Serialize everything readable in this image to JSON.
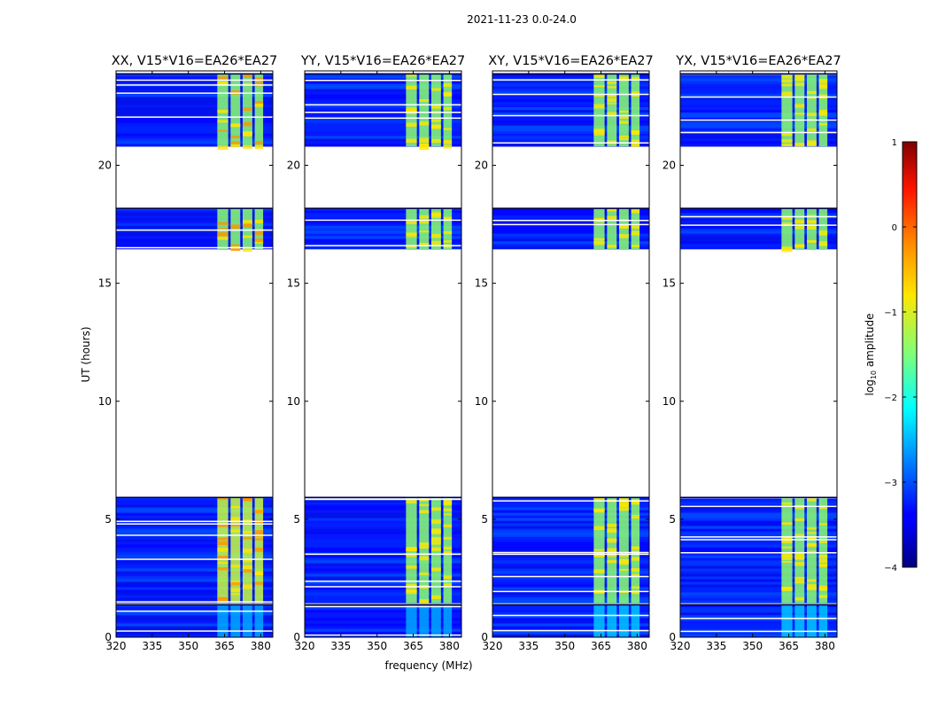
{
  "figure": {
    "suptitle": "2021-11-23 0.0-24.0",
    "xlabel": "frequency (MHz)",
    "ylabel": "UT (hours)"
  },
  "chart_data": {
    "type": "heatmap",
    "panels": [
      {
        "title": "XX, V15*V16=EA26*EA27",
        "pol": "XX"
      },
      {
        "title": "YY, V15*V16=EA26*EA27",
        "pol": "YY"
      },
      {
        "title": "XY, V15*V16=EA26*EA27",
        "pol": "XY"
      },
      {
        "title": "YX, V15*V16=EA26*EA27",
        "pol": "YX"
      }
    ],
    "x_range_mhz": [
      320,
      385
    ],
    "x_ticks": [
      320,
      335,
      350,
      365,
      380
    ],
    "y_range_hours": [
      0,
      24
    ],
    "y_ticks": [
      0,
      5,
      10,
      15,
      20
    ],
    "data_time_blocks_hours": [
      [
        0.0,
        1.4
      ],
      [
        1.45,
        5.95
      ],
      [
        16.45,
        18.2
      ],
      [
        20.8,
        23.9
      ]
    ],
    "empty_time_blocks_hours": [
      [
        5.95,
        16.45
      ],
      [
        18.2,
        20.8
      ]
    ],
    "bright_band_mhz": [
      362,
      381
    ],
    "bright_subbands_mhz": [
      [
        362,
        366.5
      ],
      [
        367.5,
        371.5
      ],
      [
        372.5,
        376.5
      ],
      [
        377.5,
        381
      ]
    ],
    "colorbar": {
      "label": "log10 amplitude",
      "label_main": "log",
      "label_sub": "10",
      "label_tail": " amplitude",
      "range": [
        -4,
        1
      ],
      "ticks": [
        -4,
        -3,
        -2,
        -1,
        0,
        1
      ],
      "tick_labels": [
        "−4",
        "−3",
        "−2",
        "−1",
        "0",
        "1"
      ],
      "colormap": "jet"
    }
  }
}
